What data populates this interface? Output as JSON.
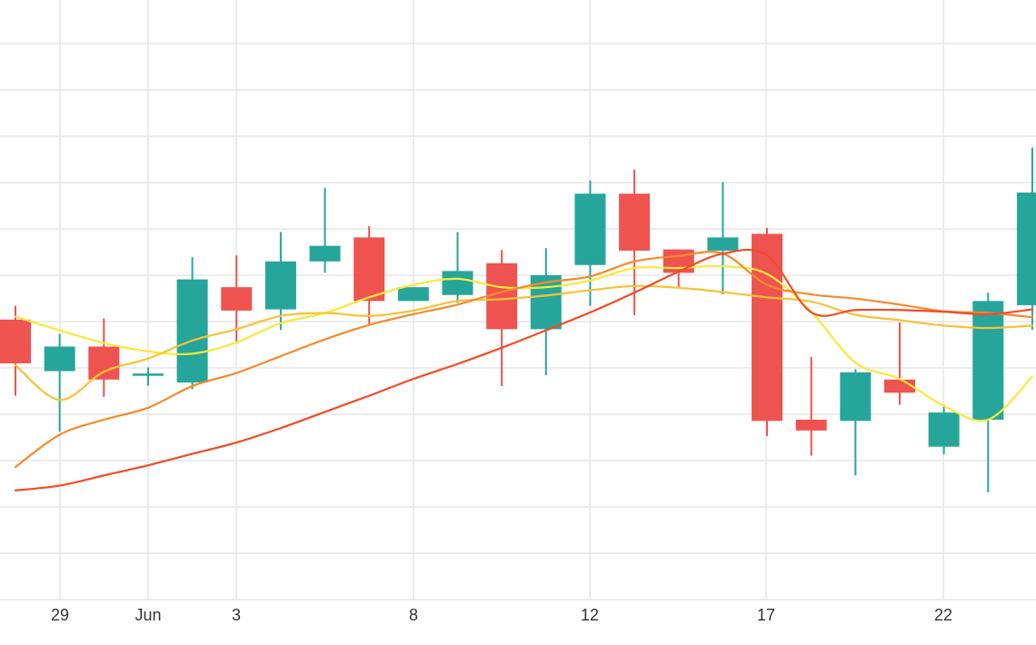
{
  "chart_data": {
    "type": "candlestick",
    "grid": true,
    "legend": "none",
    "x_tick_labels": [
      "29",
      "Jun",
      "3",
      "8",
      "12",
      "17",
      "22"
    ],
    "y_range": [
      0,
      1
    ],
    "y_note": "no price axis labels visible; values in relative units (0 = bottom of plot, 1 = top)",
    "colors": {
      "up": "#26a69a",
      "down": "#ef5350",
      "ma_fast": "#f7ea3a",
      "ma_2": "#f9c235",
      "ma_3": "#f78a2a",
      "ma_4": "#f24c24",
      "grid": "#e6e6e6",
      "tick_text": "#333333"
    },
    "candles": [
      {
        "o": 0.467,
        "h": 0.49,
        "l": 0.34,
        "c": 0.394,
        "dir": "down"
      },
      {
        "o": 0.381,
        "h": 0.443,
        "l": 0.28,
        "c": 0.422,
        "dir": "up"
      },
      {
        "o": 0.422,
        "h": 0.469,
        "l": 0.338,
        "c": 0.367,
        "dir": "down"
      },
      {
        "o": 0.377,
        "h": 0.387,
        "l": 0.357,
        "c": 0.377,
        "dir": "up"
      },
      {
        "o": 0.362,
        "h": 0.571,
        "l": 0.351,
        "c": 0.534,
        "dir": "up"
      },
      {
        "o": 0.521,
        "h": 0.574,
        "l": 0.429,
        "c": 0.482,
        "dir": "down"
      },
      {
        "o": 0.484,
        "h": 0.613,
        "l": 0.45,
        "c": 0.564,
        "dir": "up"
      },
      {
        "o": 0.564,
        "h": 0.687,
        "l": 0.545,
        "c": 0.59,
        "dir": "up"
      },
      {
        "o": 0.604,
        "h": 0.623,
        "l": 0.459,
        "c": 0.498,
        "dir": "down"
      },
      {
        "o": 0.498,
        "h": 0.521,
        "l": 0.498,
        "c": 0.521,
        "dir": "up"
      },
      {
        "o": 0.508,
        "h": 0.613,
        "l": 0.495,
        "c": 0.548,
        "dir": "up"
      },
      {
        "o": 0.561,
        "h": 0.583,
        "l": 0.356,
        "c": 0.451,
        "dir": "down"
      },
      {
        "o": 0.451,
        "h": 0.586,
        "l": 0.374,
        "c": 0.541,
        "dir": "up"
      },
      {
        "o": 0.558,
        "h": 0.699,
        "l": 0.49,
        "c": 0.677,
        "dir": "up"
      },
      {
        "o": 0.677,
        "h": 0.717,
        "l": 0.474,
        "c": 0.582,
        "dir": "down"
      },
      {
        "o": 0.584,
        "h": 0.584,
        "l": 0.52,
        "c": 0.545,
        "dir": "down"
      },
      {
        "o": 0.582,
        "h": 0.696,
        "l": 0.509,
        "c": 0.604,
        "dir": "up"
      },
      {
        "o": 0.61,
        "h": 0.62,
        "l": 0.273,
        "c": 0.298,
        "dir": "down"
      },
      {
        "o": 0.3,
        "h": 0.405,
        "l": 0.24,
        "c": 0.282,
        "dir": "down"
      },
      {
        "o": 0.298,
        "h": 0.384,
        "l": 0.207,
        "c": 0.379,
        "dir": "up"
      },
      {
        "o": 0.367,
        "h": 0.462,
        "l": 0.325,
        "c": 0.345,
        "dir": "down"
      },
      {
        "o": 0.255,
        "h": 0.325,
        "l": 0.242,
        "c": 0.312,
        "dir": "up"
      },
      {
        "o": 0.3,
        "h": 0.512,
        "l": 0.179,
        "c": 0.498,
        "dir": "up"
      },
      {
        "o": 0.491,
        "h": 0.754,
        "l": 0.45,
        "c": 0.679,
        "dir": "up"
      }
    ],
    "moving_averages": [
      {
        "key": "ma_fast",
        "values": [
          0.472,
          0.449,
          0.428,
          0.414,
          0.41,
          0.429,
          0.461,
          0.478,
          0.504,
          0.525,
          0.535,
          0.521,
          0.521,
          0.532,
          0.553,
          0.553,
          0.556,
          0.543,
          0.48,
          0.395,
          0.368,
          0.323,
          0.3,
          0.372
        ]
      },
      {
        "key": "ma_2",
        "values": [
          0.391,
          0.333,
          0.38,
          0.402,
          0.432,
          0.451,
          0.473,
          0.478,
          0.473,
          0.482,
          0.498,
          0.501,
          0.507,
          0.516,
          0.523,
          0.52,
          0.513,
          0.504,
          0.497,
          0.475,
          0.466,
          0.457,
          0.453,
          0.457
        ]
      },
      {
        "key": "ma_3",
        "values": [
          0.221,
          0.275,
          0.3,
          0.32,
          0.356,
          0.378,
          0.406,
          0.434,
          0.458,
          0.476,
          0.492,
          0.513,
          0.529,
          0.539,
          0.564,
          0.573,
          0.577,
          0.525,
          0.509,
          0.502,
          0.492,
          0.481,
          0.478,
          0.471
        ]
      },
      {
        "key": "ma_4",
        "values": [
          0.182,
          0.19,
          0.207,
          0.224,
          0.243,
          0.262,
          0.286,
          0.313,
          0.34,
          0.368,
          0.393,
          0.42,
          0.449,
          0.479,
          0.512,
          0.547,
          0.577,
          0.574,
          0.479,
          0.483,
          0.483,
          0.48,
          0.476,
          0.484
        ]
      }
    ]
  }
}
